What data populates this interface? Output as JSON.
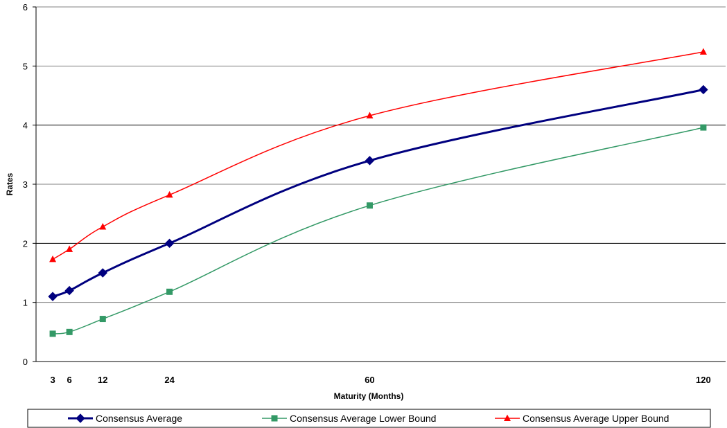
{
  "chart_data": {
    "type": "line",
    "title": "",
    "xlabel": "Maturity (Months)",
    "ylabel": "Rates",
    "xlim": [
      0,
      124
    ],
    "ylim": [
      0,
      6
    ],
    "xticks": [
      "3",
      "6",
      "12",
      "24",
      "60",
      "120"
    ],
    "yticks": [
      "0",
      "1",
      "2",
      "3",
      "4",
      "5",
      "6"
    ],
    "x": [
      3,
      6,
      12,
      24,
      60,
      120
    ],
    "grid": true,
    "legend_position": "bottom",
    "series": [
      {
        "name": "Consensus Average",
        "color": "#00007f",
        "marker": "diamond",
        "points": [
          [
            3,
            1.1
          ],
          [
            6,
            1.2
          ],
          [
            12,
            1.5
          ],
          [
            24,
            2.0
          ],
          [
            60,
            3.4
          ],
          [
            120,
            4.6
          ]
        ]
      },
      {
        "name": "Consensus Average Lower Bound",
        "color": "#339966",
        "marker": "square",
        "points": [
          [
            3,
            0.47
          ],
          [
            6,
            0.5
          ],
          [
            12,
            0.72
          ],
          [
            24,
            1.18
          ],
          [
            60,
            2.64
          ],
          [
            120,
            3.96
          ]
        ]
      },
      {
        "name": "Consensus Average Upper Bound",
        "color": "#ff0000",
        "marker": "triangle",
        "points": [
          [
            3,
            1.73
          ],
          [
            6,
            1.9
          ],
          [
            12,
            2.28
          ],
          [
            24,
            2.82
          ],
          [
            60,
            4.16
          ],
          [
            120,
            5.24
          ]
        ]
      }
    ]
  }
}
